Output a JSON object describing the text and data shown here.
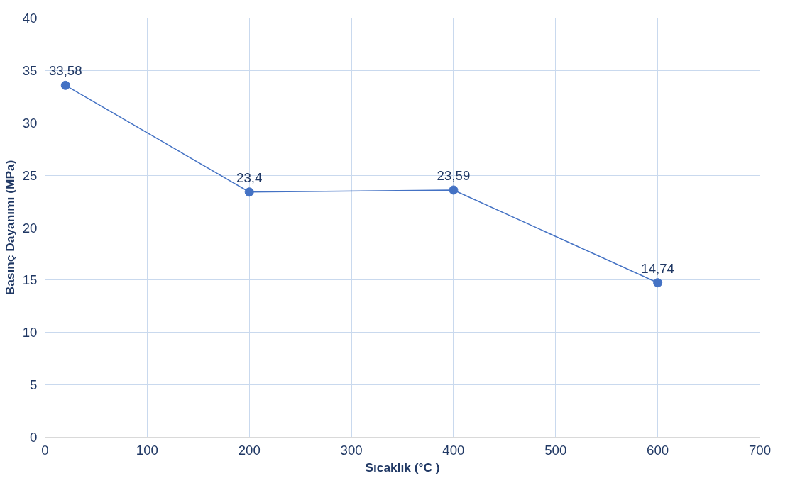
{
  "chart_data": {
    "type": "line",
    "xlabel": "Sıcaklık (°C )",
    "ylabel": "Basınç Dayanımı (MPa)",
    "x": [
      20,
      200,
      400,
      600
    ],
    "series": [
      {
        "color": "#4472c4",
        "values": [
          33.58,
          23.4,
          23.59,
          14.74
        ],
        "value_labels": [
          "33,58",
          "23,4",
          "23,59",
          "14,74"
        ]
      }
    ],
    "xlim": [
      0,
      700
    ],
    "xticks": [
      0,
      100,
      200,
      300,
      400,
      500,
      600,
      700
    ],
    "ylim": [
      0,
      40
    ],
    "yticks": [
      0,
      5,
      10,
      15,
      20,
      25,
      30,
      35,
      40
    ],
    "grid": true,
    "marker": "circle",
    "line_style": "solid"
  }
}
